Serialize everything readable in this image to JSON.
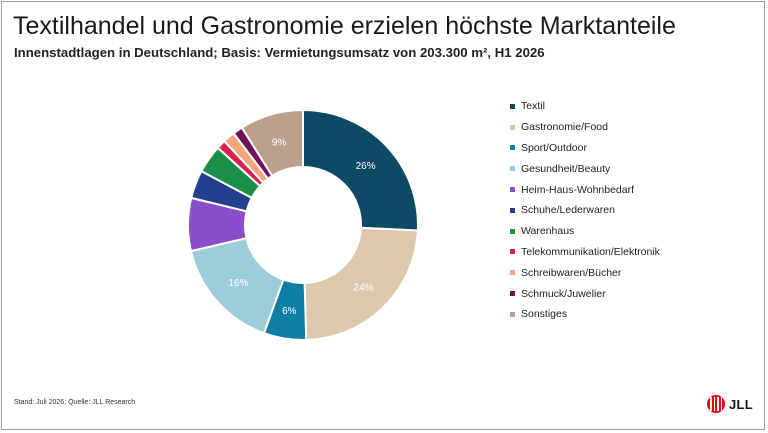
{
  "header": {
    "title": "Textilhandel und Gastronomie erzielen höchste Marktanteile",
    "subtitle": "Innenstadtlagen in Deutschland; Basis: Vermietungsumsatz von 203.300 m², H1 2026"
  },
  "footer": {
    "source": "Stand: Juli 2026; Quelle: JLL Research",
    "logo_text": "JLL"
  },
  "chart_data": {
    "type": "pie",
    "variant": "donut",
    "legend_position": "right",
    "categories": [
      "Textil",
      "Gastronomie/Food",
      "Sport/Outdoor",
      "Gesundheit/Beauty",
      "Heim-Haus-Wohnbedarf",
      "Schuhe/Lederwaren",
      "Warenhaus",
      "Telekommunikation/Elektronik",
      "Schreibwaren/Bücher",
      "Schmuck/Juwelier",
      "Sonstiges"
    ],
    "values": [
      26,
      24,
      6,
      16,
      7.5,
      4,
      4,
      1.3,
      1.7,
      1.4,
      9
    ],
    "value_labels": [
      "26%",
      "24%",
      "6%",
      "16%",
      "",
      "",
      "",
      "",
      "",
      "",
      "9%"
    ],
    "colors": [
      "#0c4a66",
      "#dec8ad",
      "#0f7ea3",
      "#9dccdb",
      "#8b4dcc",
      "#23408e",
      "#1c8f4b",
      "#d8234e",
      "#f4a57d",
      "#73105a",
      "#bca08c"
    ],
    "label_colors": [
      "#ffffff",
      "#ffffff",
      "#ffffff",
      "#ffffff",
      "#ffffff",
      "#ffffff",
      "#ffffff",
      "#ffffff",
      "#ffffff",
      "#ffffff",
      "#ffffff"
    ]
  }
}
